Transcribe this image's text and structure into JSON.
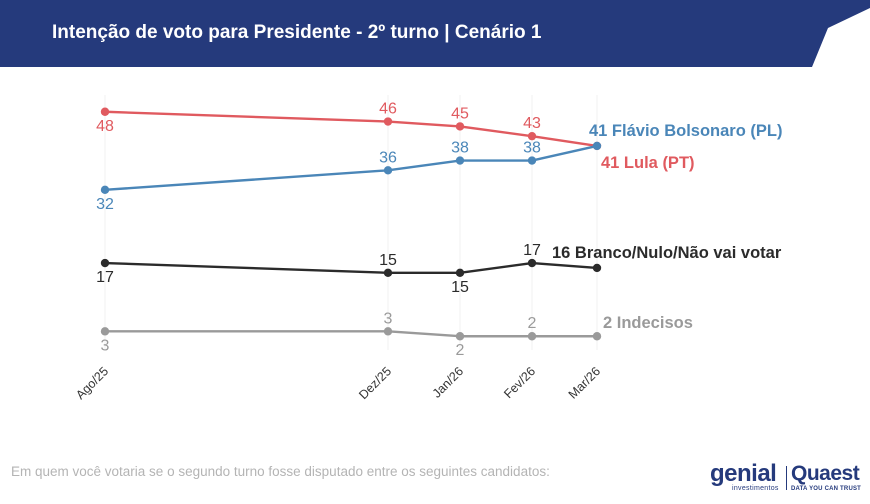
{
  "header": {
    "title": "Intenção de voto para Presidente - 2º turno | Cenário 1"
  },
  "footnote": "Em quem você votaria se o segundo turno fosse disputado entre os seguintes candidatos:",
  "logos": {
    "genial": "genial",
    "genial_sub": "investimentos",
    "quaest": "Quaest",
    "quaest_sub": "DATA YOU CAN TRUST"
  },
  "chart_data": {
    "type": "line",
    "title": "Intenção de voto para Presidente - 2º turno | Cenário 1",
    "x": [
      "Ago/25",
      "Dez/25",
      "Jan/26",
      "Fev/26",
      "Mar/26"
    ],
    "grid": false,
    "legend": "end-of-line labels",
    "ylim": [
      0,
      50
    ],
    "series": [
      {
        "name": "Lula (PT)",
        "color": "#e05a5f",
        "values": [
          48,
          46,
          45,
          43,
          41
        ],
        "end_label": "41 Lula (PT)"
      },
      {
        "name": "Flávio Bolsonaro (PL)",
        "color": "#4a86b8",
        "values": [
          32,
          36,
          38,
          38,
          41
        ],
        "end_label": "41 Flávio Bolsonaro (PL)"
      },
      {
        "name": "Branco/Nulo/Não vai votar",
        "color": "#2b2b2b",
        "values": [
          17,
          15,
          15,
          17,
          16
        ],
        "end_label": "16 Branco/Nulo/Não vai votar"
      },
      {
        "name": "Indecisos",
        "color": "#9a9a9a",
        "values": [
          3,
          3,
          2,
          2,
          2
        ],
        "end_label": "2 Indecisos"
      }
    ]
  }
}
